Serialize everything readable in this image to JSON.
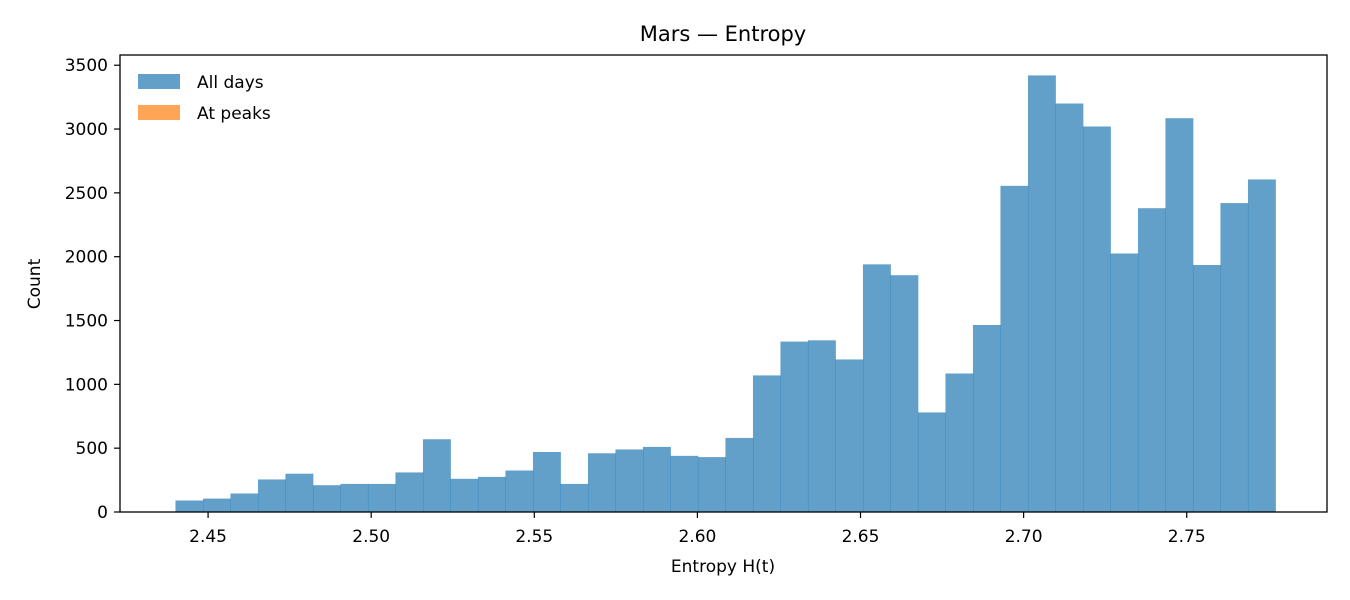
{
  "chart_data": {
    "type": "bar",
    "title": "Mars — Entropy",
    "xlabel": "Entropy H(t)",
    "ylabel": "Count",
    "xlim": [
      2.423,
      2.793
    ],
    "ylim": [
      0,
      3580
    ],
    "x_ticks": [
      "2.45",
      "2.50",
      "2.55",
      "2.60",
      "2.65",
      "2.70",
      "2.75"
    ],
    "y_ticks": [
      "0",
      "500",
      "1000",
      "1500",
      "2000",
      "2500",
      "3000",
      "3500"
    ],
    "bin_start": 2.44,
    "bin_width": 0.00843,
    "legend_position": "top-left",
    "grid": false,
    "series": [
      {
        "name": "All days",
        "color": "#1f77b4",
        "values": [
          90,
          105,
          145,
          255,
          300,
          210,
          220,
          220,
          310,
          570,
          260,
          275,
          325,
          470,
          220,
          460,
          490,
          510,
          440,
          430,
          580,
          1070,
          1335,
          1345,
          1195,
          1940,
          1855,
          780,
          1085,
          1465,
          2555,
          3420,
          3200,
          3020,
          2025,
          2380,
          3085,
          1935,
          2420,
          2605
        ]
      },
      {
        "name": "At peaks",
        "color": "#ff7f0e",
        "values": []
      }
    ]
  }
}
